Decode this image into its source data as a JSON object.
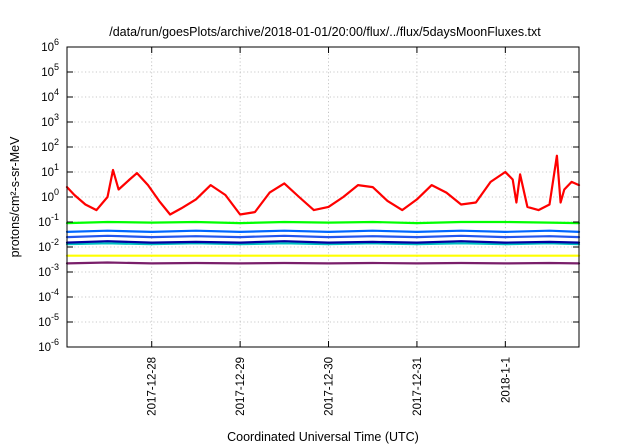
{
  "chart_data": {
    "type": "line",
    "title": "/data/run/goesPlots/archive/2018-01-01/20:00/flux/../flux/5daysMoonFluxes.txt",
    "xlabel": "Coordinated Universal Time (UTC)",
    "ylabel": "protons/cm²-s-sr-MeV",
    "y_scale": "log",
    "ylim": [
      1e-06,
      1000000.0
    ],
    "xlim": [
      "2017-12-27 01:00",
      "2018-01-01 20:00"
    ],
    "grid": true,
    "legend": "none",
    "y_ticks": [
      {
        "base": "10",
        "exp": "-6"
      },
      {
        "base": "10",
        "exp": "-5"
      },
      {
        "base": "10",
        "exp": "-4"
      },
      {
        "base": "10",
        "exp": "-3"
      },
      {
        "base": "10",
        "exp": "-2"
      },
      {
        "base": "10",
        "exp": "-1"
      },
      {
        "base": "10",
        "exp": "0"
      },
      {
        "base": "10",
        "exp": "1"
      },
      {
        "base": "10",
        "exp": "2"
      },
      {
        "base": "10",
        "exp": "3"
      },
      {
        "base": "10",
        "exp": "4"
      },
      {
        "base": "10",
        "exp": "5"
      },
      {
        "base": "10",
        "exp": "6"
      }
    ],
    "x_ticks": [
      "2017-12-28",
      "2017-12-29",
      "2017-12-30",
      "2017-12-31",
      "2018-1-1"
    ],
    "series": [
      {
        "color": "#ff0000",
        "x": [
          "2017-12-27 01:00",
          "2017-12-27 03:00",
          "2017-12-27 06:00",
          "2017-12-27 09:00",
          "2017-12-27 12:00",
          "2017-12-27 13:30",
          "2017-12-27 15:00",
          "2017-12-27 18:00",
          "2017-12-27 20:00",
          "2017-12-27 23:00",
          "2017-12-28 02:00",
          "2017-12-28 05:00",
          "2017-12-28 08:00",
          "2017-12-28 12:00",
          "2017-12-28 16:00",
          "2017-12-28 20:00",
          "2017-12-29 00:00",
          "2017-12-29 04:00",
          "2017-12-29 08:00",
          "2017-12-29 12:00",
          "2017-12-29 16:00",
          "2017-12-29 20:00",
          "2017-12-30 00:00",
          "2017-12-30 04:00",
          "2017-12-30 08:00",
          "2017-12-30 12:00",
          "2017-12-30 16:00",
          "2017-12-30 20:00",
          "2017-12-31 00:00",
          "2017-12-31 04:00",
          "2017-12-31 08:00",
          "2017-12-31 12:00",
          "2017-12-31 16:00",
          "2017-12-31 20:00",
          "2018-01-01 00:00",
          "2018-01-01 02:00",
          "2018-01-01 03:00",
          "2018-01-01 04:00",
          "2018-01-01 06:00",
          "2018-01-01 09:00",
          "2018-01-01 12:00",
          "2018-01-01 14:00",
          "2018-01-01 15:00",
          "2018-01-01 16:00",
          "2018-01-01 18:00",
          "2018-01-01 20:00"
        ],
        "y": [
          2.5,
          1.2,
          0.5,
          0.3,
          1.0,
          12,
          2.0,
          5,
          9,
          3,
          0.7,
          0.2,
          0.35,
          0.8,
          3,
          1.2,
          0.2,
          0.25,
          1.5,
          3.5,
          1.0,
          0.3,
          0.4,
          1.0,
          3,
          2.5,
          0.7,
          0.3,
          0.8,
          3,
          1.5,
          0.5,
          0.6,
          4,
          10,
          5,
          0.6,
          8,
          0.4,
          0.3,
          0.5,
          45,
          0.6,
          2.0,
          4,
          3
        ]
      },
      {
        "color": "#00ff00",
        "x": [
          "2017-12-27 01:00",
          "2017-12-27 12:00",
          "2017-12-28 00:00",
          "2017-12-28 12:00",
          "2017-12-29 00:00",
          "2017-12-29 12:00",
          "2017-12-30 00:00",
          "2017-12-30 12:00",
          "2017-12-31 00:00",
          "2017-12-31 12:00",
          "2018-01-01 00:00",
          "2018-01-01 12:00",
          "2018-01-01 20:00"
        ],
        "y": [
          0.09,
          0.1,
          0.095,
          0.1,
          0.09,
          0.1,
          0.095,
          0.1,
          0.09,
          0.1,
          0.1,
          0.095,
          0.09
        ]
      },
      {
        "color": "#0066ff",
        "x": [
          "2017-12-27 01:00",
          "2017-12-27 12:00",
          "2017-12-28 00:00",
          "2017-12-28 12:00",
          "2017-12-29 00:00",
          "2017-12-29 12:00",
          "2017-12-30 00:00",
          "2017-12-30 12:00",
          "2017-12-31 00:00",
          "2017-12-31 12:00",
          "2018-01-01 00:00",
          "2018-01-01 12:00",
          "2018-01-01 20:00"
        ],
        "y": [
          0.04,
          0.045,
          0.04,
          0.045,
          0.04,
          0.045,
          0.04,
          0.045,
          0.04,
          0.045,
          0.04,
          0.045,
          0.04
        ]
      },
      {
        "color": "#2255ee",
        "x": [
          "2017-12-27 01:00",
          "2017-12-27 12:00",
          "2017-12-28 00:00",
          "2017-12-28 12:00",
          "2017-12-29 00:00",
          "2017-12-29 12:00",
          "2017-12-30 00:00",
          "2017-12-30 12:00",
          "2017-12-31 00:00",
          "2017-12-31 12:00",
          "2018-01-01 00:00",
          "2018-01-01 12:00",
          "2018-01-01 20:00"
        ],
        "y": [
          0.025,
          0.028,
          0.025,
          0.027,
          0.025,
          0.028,
          0.025,
          0.027,
          0.025,
          0.028,
          0.025,
          0.027,
          0.025
        ]
      },
      {
        "color": "#00c0c0",
        "x": [
          "2017-12-27 01:00",
          "2017-12-27 12:00",
          "2017-12-28 00:00",
          "2017-12-28 12:00",
          "2017-12-29 00:00",
          "2017-12-29 12:00",
          "2017-12-30 00:00",
          "2017-12-30 12:00",
          "2017-12-31 00:00",
          "2017-12-31 12:00",
          "2018-01-01 00:00",
          "2018-01-01 12:00",
          "2018-01-01 20:00"
        ],
        "y": [
          0.013,
          0.014,
          0.013,
          0.014,
          0.013,
          0.014,
          0.013,
          0.014,
          0.013,
          0.014,
          0.013,
          0.014,
          0.013
        ]
      },
      {
        "color": "#0000a0",
        "x": [
          "2017-12-27 01:00",
          "2017-12-27 12:00",
          "2017-12-28 00:00",
          "2017-12-28 12:00",
          "2017-12-29 00:00",
          "2017-12-29 12:00",
          "2017-12-30 00:00",
          "2017-12-30 12:00",
          "2017-12-31 00:00",
          "2017-12-31 12:00",
          "2018-01-01 00:00",
          "2018-01-01 12:00",
          "2018-01-01 20:00"
        ],
        "y": [
          0.015,
          0.017,
          0.015,
          0.016,
          0.015,
          0.017,
          0.015,
          0.016,
          0.015,
          0.017,
          0.015,
          0.016,
          0.015
        ]
      },
      {
        "color": "#ffff00",
        "x": [
          "2017-12-27 01:00",
          "2017-12-28 00:00",
          "2017-12-29 00:00",
          "2017-12-30 00:00",
          "2017-12-31 00:00",
          "2018-01-01 00:00",
          "2018-01-01 20:00"
        ],
        "y": [
          0.0045,
          0.0045,
          0.0045,
          0.0045,
          0.0045,
          0.0045,
          0.0045
        ]
      },
      {
        "color": "#7a1f6a",
        "x": [
          "2017-12-27 01:00",
          "2017-12-27 12:00",
          "2017-12-28 00:00",
          "2017-12-28 12:00",
          "2017-12-29 00:00",
          "2017-12-29 12:00",
          "2017-12-30 00:00",
          "2017-12-30 12:00",
          "2017-12-31 00:00",
          "2017-12-31 12:00",
          "2018-01-01 00:00",
          "2018-01-01 12:00",
          "2018-01-01 20:00"
        ],
        "y": [
          0.0022,
          0.0024,
          0.0022,
          0.0023,
          0.0022,
          0.0023,
          0.0022,
          0.0023,
          0.0022,
          0.0023,
          0.0022,
          0.0023,
          0.0022
        ]
      }
    ]
  }
}
